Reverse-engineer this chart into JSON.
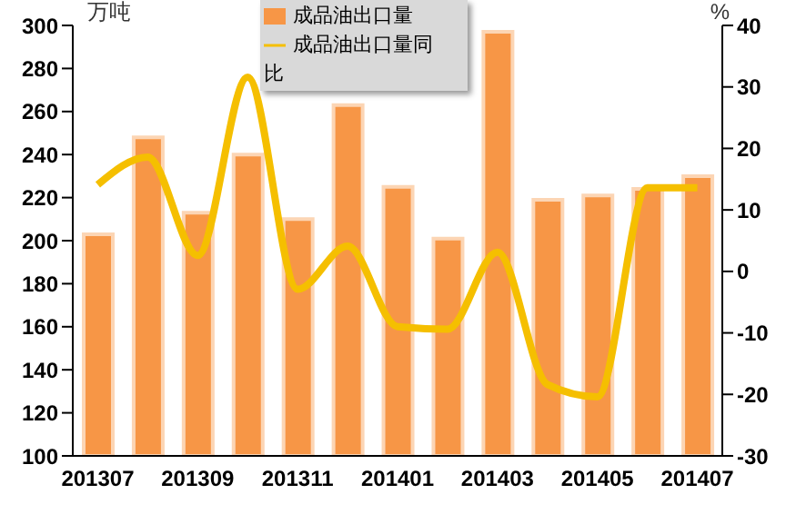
{
  "chart_data": {
    "type": "bar",
    "ylabel": "万吨",
    "y2label": "%",
    "categories": [
      "201307",
      null,
      "201309",
      null,
      "201311",
      null,
      "201401",
      null,
      "201403",
      null,
      "201405",
      null,
      "201407"
    ],
    "series": [
      {
        "name": "成品油出口量",
        "color": "#f79646",
        "values": [
          203,
          248,
          213,
          240,
          210,
          263,
          225,
          201,
          297,
          219,
          221,
          224,
          230
        ]
      },
      {
        "name": "成品油出口量同比",
        "type": "line",
        "axis": "y2",
        "color": "#f5bf00",
        "values": [
          14.1,
          18.6,
          2.6,
          31.6,
          -2.9,
          4.1,
          -9,
          -9.4,
          3.1,
          -18.4,
          -20.4,
          13.6,
          13.6
        ]
      }
    ],
    "ylim": [
      100,
      300
    ],
    "yticks": [
      100,
      120,
      140,
      160,
      180,
      200,
      220,
      240,
      260,
      280,
      300
    ],
    "y2lim": [
      -30,
      40
    ],
    "y2ticks": [
      -30,
      -20,
      -10,
      0,
      10,
      20,
      30,
      40
    ],
    "legend": "top",
    "marker": "none"
  }
}
